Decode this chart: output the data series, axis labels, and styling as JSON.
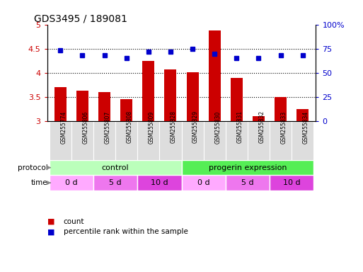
{
  "title": "GDS3495 / 189081",
  "samples": [
    "GSM255774",
    "GSM255806",
    "GSM255807",
    "GSM255808",
    "GSM255809",
    "GSM255828",
    "GSM255829",
    "GSM255830",
    "GSM255831",
    "GSM255832",
    "GSM255833",
    "GSM255834"
  ],
  "count_values": [
    3.7,
    3.63,
    3.6,
    3.45,
    4.25,
    4.07,
    4.02,
    4.88,
    3.9,
    3.1,
    3.5,
    3.25
  ],
  "percentile_values": [
    73,
    68,
    68,
    65,
    72,
    72,
    75,
    70,
    65,
    65,
    68,
    68
  ],
  "ylim_left": [
    3.0,
    5.0
  ],
  "ylim_right": [
    0,
    100
  ],
  "yticks_left": [
    3.0,
    3.5,
    4.0,
    4.5,
    5.0
  ],
  "yticks_right": [
    0,
    25,
    50,
    75,
    100
  ],
  "bar_color": "#cc0000",
  "dot_color": "#0000cc",
  "protocol_labels": [
    "control",
    "progerin expression"
  ],
  "protocol_colors": [
    "#bbffbb",
    "#55ee55"
  ],
  "time_labels": [
    "0 d",
    "5 d",
    "10 d",
    "0 d",
    "5 d",
    "10 d"
  ],
  "time_colors": [
    "#ffaaff",
    "#ee77ee",
    "#dd44dd",
    "#ffaaff",
    "#ee77ee",
    "#dd44dd"
  ],
  "background_color": "#ffffff",
  "label_color_left": "#cc0000",
  "label_color_right": "#0000cc",
  "sample_box_color": "#dddddd",
  "legend_square_size": 8
}
